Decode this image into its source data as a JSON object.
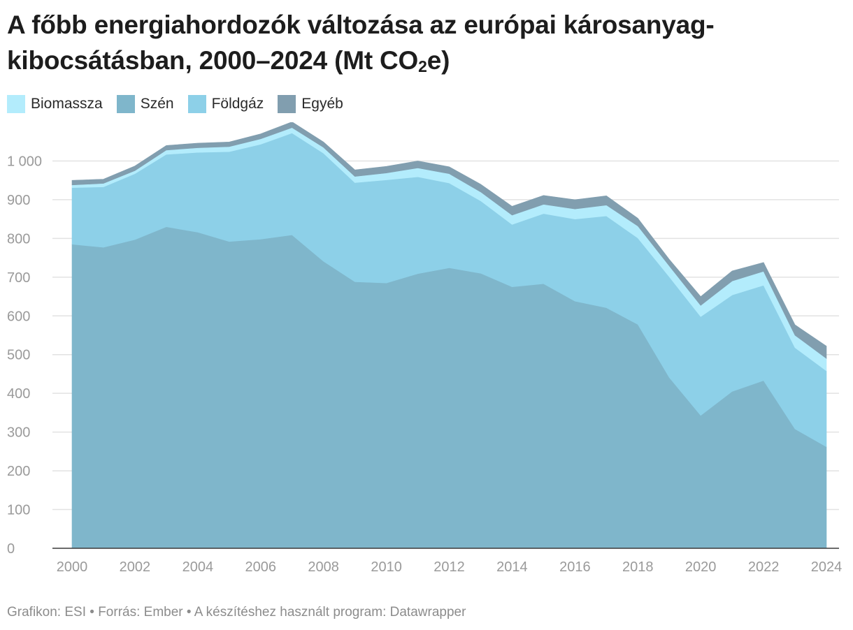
{
  "title_main": "A főbb energiahordozók változása az európai károsanyag-kibocsátásban, 2000–2024 (Mt CO",
  "title_sub": "2",
  "title_end": "e)",
  "footer": "Grafikon: ESI • Forrás: Ember • A készítéshez használt program: Datawrapper",
  "colors": {
    "biomassza": "#b3ecfc",
    "szen": "#7fb6cb",
    "foldgaz": "#8dd0e8",
    "egyeb": "#819eaf",
    "grid": "#e2e2e2",
    "axis": "#3a3a3a",
    "tick_text": "#9a9a9a"
  },
  "legend": [
    {
      "label": "Biomassza",
      "color": "#b3ecfc"
    },
    {
      "label": "Szén",
      "color": "#7fb6cb"
    },
    {
      "label": "Földgáz",
      "color": "#8dd0e8"
    },
    {
      "label": "Egyéb",
      "color": "#819eaf"
    }
  ],
  "chart_data": {
    "type": "area",
    "stacked": true,
    "title": "A főbb energiahordozók változása az európai károsanyag-kibocsátásban, 2000–2024 (Mt CO₂e)",
    "xlabel": "",
    "ylabel": "",
    "ylim": [
      0,
      1100
    ],
    "yticks": [
      0,
      100,
      200,
      300,
      400,
      500,
      600,
      700,
      800,
      900,
      1000
    ],
    "ytick_labels": [
      "0",
      "100",
      "200",
      "300",
      "400",
      "500",
      "600",
      "700",
      "800",
      "900",
      "1 000"
    ],
    "xticks": [
      2000,
      2002,
      2004,
      2006,
      2008,
      2010,
      2012,
      2014,
      2016,
      2018,
      2020,
      2022,
      2024
    ],
    "xtick_labels": [
      "2000",
      "2002",
      "2004",
      "2006",
      "2008",
      "2010",
      "2012",
      "2014",
      "2016",
      "2018",
      "2020",
      "2022",
      "2024"
    ],
    "grid": true,
    "legend_position": "top-left",
    "x": [
      2000,
      2001,
      2002,
      2003,
      2004,
      2005,
      2006,
      2007,
      2008,
      2009,
      2010,
      2011,
      2012,
      2013,
      2014,
      2015,
      2016,
      2017,
      2018,
      2019,
      2020,
      2021,
      2022,
      2023,
      2024
    ],
    "series": [
      {
        "name": "Szén",
        "values": [
          785,
          777,
          797,
          830,
          816,
          792,
          798,
          809,
          741,
          688,
          685,
          709,
          724,
          710,
          675,
          683,
          638,
          621,
          578,
          441,
          343,
          405,
          433,
          308,
          262
        ]
      },
      {
        "name": "Földgáz",
        "values": [
          146,
          156,
          170,
          187,
          206,
          232,
          245,
          263,
          279,
          256,
          266,
          250,
          219,
          187,
          161,
          181,
          212,
          237,
          223,
          260,
          255,
          249,
          246,
          210,
          196
        ]
      },
      {
        "name": "Biomassza",
        "values": [
          7,
          9,
          8,
          11,
          12,
          13,
          14,
          14,
          15,
          16,
          18,
          23,
          24,
          23,
          24,
          24,
          26,
          28,
          31,
          28,
          29,
          36,
          36,
          32,
          32
        ]
      },
      {
        "name": "Egyéb",
        "values": [
          12,
          11,
          12,
          12,
          12,
          12,
          13,
          15,
          14,
          17,
          17,
          18,
          18,
          20,
          23,
          23,
          24,
          24,
          20,
          17,
          23,
          26,
          23,
          27,
          32
        ]
      }
    ]
  }
}
